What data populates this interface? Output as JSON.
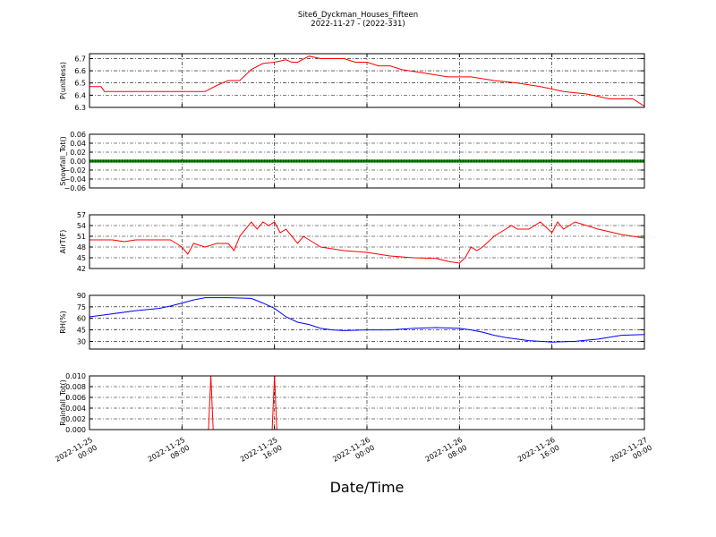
{
  "figure": {
    "title": "Site6_Dyckman_Houses_Fifteen",
    "subtitle": "2022-11-27 - (2022-331)",
    "xlabel": "Date/Time",
    "x_range": [
      "2022-11-25 00:00",
      "2022-11-27 00:00"
    ],
    "x_ticks": [
      {
        "value": "2022-11-25 00:00",
        "line1": "2022-11-25",
        "line2": "00:00"
      },
      {
        "value": "2022-11-25 08:00",
        "line1": "2022-11-25",
        "line2": "08:00"
      },
      {
        "value": "2022-11-25 16:00",
        "line1": "2022-11-25",
        "line2": "16:00"
      },
      {
        "value": "2022-11-26 00:00",
        "line1": "2022-11-26",
        "line2": "00:00"
      },
      {
        "value": "2022-11-26 08:00",
        "line1": "2022-11-26",
        "line2": "08:00"
      },
      {
        "value": "2022-11-26 16:00",
        "line1": "2022-11-26",
        "line2": "16:00"
      },
      {
        "value": "2022-11-27 00:00",
        "line1": "2022-11-27",
        "line2": "00:00"
      }
    ]
  },
  "chart_data": [
    {
      "type": "line",
      "ylabel": "P(unitless)",
      "ylim": [
        6.3,
        6.74
      ],
      "yticks": [
        "6.3",
        "6.4",
        "6.5",
        "6.6",
        "6.7"
      ],
      "tick_values": [
        6.3,
        6.4,
        6.5,
        6.6,
        6.7
      ],
      "color": "#ff0000",
      "grid": true,
      "x_hours": [
        0,
        1,
        1.3,
        5,
        10,
        11,
        12,
        13,
        14,
        15,
        16,
        17,
        17.5,
        18,
        19,
        20,
        21,
        22,
        23,
        24,
        25,
        26,
        27,
        29,
        31,
        33,
        35,
        37,
        39,
        41,
        43,
        45,
        47,
        48
      ],
      "values": [
        6.47,
        6.47,
        6.43,
        6.43,
        6.43,
        6.48,
        6.52,
        6.52,
        6.61,
        6.66,
        6.67,
        6.69,
        6.67,
        6.67,
        6.72,
        6.7,
        6.7,
        6.7,
        6.67,
        6.67,
        6.64,
        6.64,
        6.61,
        6.58,
        6.55,
        6.55,
        6.52,
        6.5,
        6.47,
        6.43,
        6.41,
        6.37,
        6.37,
        6.31
      ]
    },
    {
      "type": "line",
      "ylabel": "Snowfall_Tot()",
      "ylim": [
        -0.06,
        0.06
      ],
      "yticks": [
        "−0.06",
        "−0.04",
        "−0.02",
        "0.00",
        "0.02",
        "0.04",
        "0.06"
      ],
      "tick_values": [
        -0.06,
        -0.04,
        -0.02,
        0.0,
        0.02,
        0.04,
        0.06
      ],
      "color": "#008000",
      "grid": true,
      "x_hours": [
        0,
        48
      ],
      "values": [
        0.0,
        0.0
      ]
    },
    {
      "type": "line",
      "ylabel": "AirT(F)",
      "ylim": [
        42,
        57
      ],
      "yticks": [
        "42",
        "45",
        "48",
        "51",
        "54",
        "57"
      ],
      "tick_values": [
        42,
        45,
        48,
        51,
        54,
        57
      ],
      "color": "#ff0000",
      "grid": true,
      "x_hours": [
        0,
        1,
        2,
        3,
        4,
        5,
        6,
        7,
        7.5,
        8,
        8.5,
        9,
        10,
        11,
        12,
        12.5,
        13,
        14,
        14.5,
        15,
        15.5,
        16,
        16.5,
        17,
        18,
        18.5,
        19,
        20,
        22,
        24,
        26,
        28,
        30,
        31,
        32,
        32.5,
        33,
        33.5,
        34,
        35,
        36,
        36.5,
        37,
        38,
        39,
        40,
        40.5,
        41,
        42,
        43,
        44,
        46,
        48
      ],
      "values": [
        50,
        50,
        50,
        49.5,
        50,
        50,
        50,
        50,
        49,
        48,
        46,
        49,
        48,
        49,
        49,
        47,
        51,
        55,
        53,
        55,
        54,
        55,
        52,
        53,
        49,
        51,
        50,
        48,
        47,
        46.5,
        45.5,
        45,
        44.8,
        44,
        43.5,
        45,
        48,
        47,
        48,
        51,
        53,
        54,
        53,
        53,
        55,
        52,
        55,
        53,
        55,
        54,
        53,
        51.5,
        50.5
      ]
    },
    {
      "type": "line",
      "ylabel": "RH(%)",
      "ylim": [
        20,
        90
      ],
      "yticks": [
        "30",
        "45",
        "60",
        "75",
        "90"
      ],
      "tick_values": [
        30,
        45,
        60,
        75,
        90
      ],
      "color": "#0000ff",
      "grid": true,
      "x_hours": [
        0,
        2,
        4,
        6,
        7,
        8,
        9,
        10,
        12,
        14,
        15,
        16,
        17,
        18,
        19,
        20,
        21,
        22,
        24,
        26,
        28,
        30,
        32,
        33,
        34,
        35,
        36,
        37,
        38,
        39,
        40,
        42,
        44,
        46,
        48
      ],
      "values": [
        62,
        66,
        70,
        73,
        76,
        80,
        84,
        87,
        87,
        86,
        80,
        73,
        62,
        55,
        52,
        47,
        45,
        44,
        45,
        45,
        47,
        48,
        47,
        45,
        42,
        38,
        35,
        33,
        31,
        30,
        29,
        30,
        33,
        38,
        39
      ]
    },
    {
      "type": "line",
      "ylabel": "Rainfall_Tot()",
      "ylim": [
        0,
        0.01
      ],
      "yticks": [
        "0.000",
        "0.002",
        "0.004",
        "0.006",
        "0.008",
        "0.010"
      ],
      "tick_values": [
        0,
        0.002,
        0.004,
        0.006,
        0.008,
        0.01
      ],
      "color": "#ff0000",
      "grid": true,
      "x_hours": [
        0,
        10.3,
        10.5,
        10.7,
        15.8,
        16,
        16.2,
        48
      ],
      "values": [
        0,
        0,
        0.01,
        0,
        0,
        0.01,
        0,
        0
      ]
    }
  ]
}
